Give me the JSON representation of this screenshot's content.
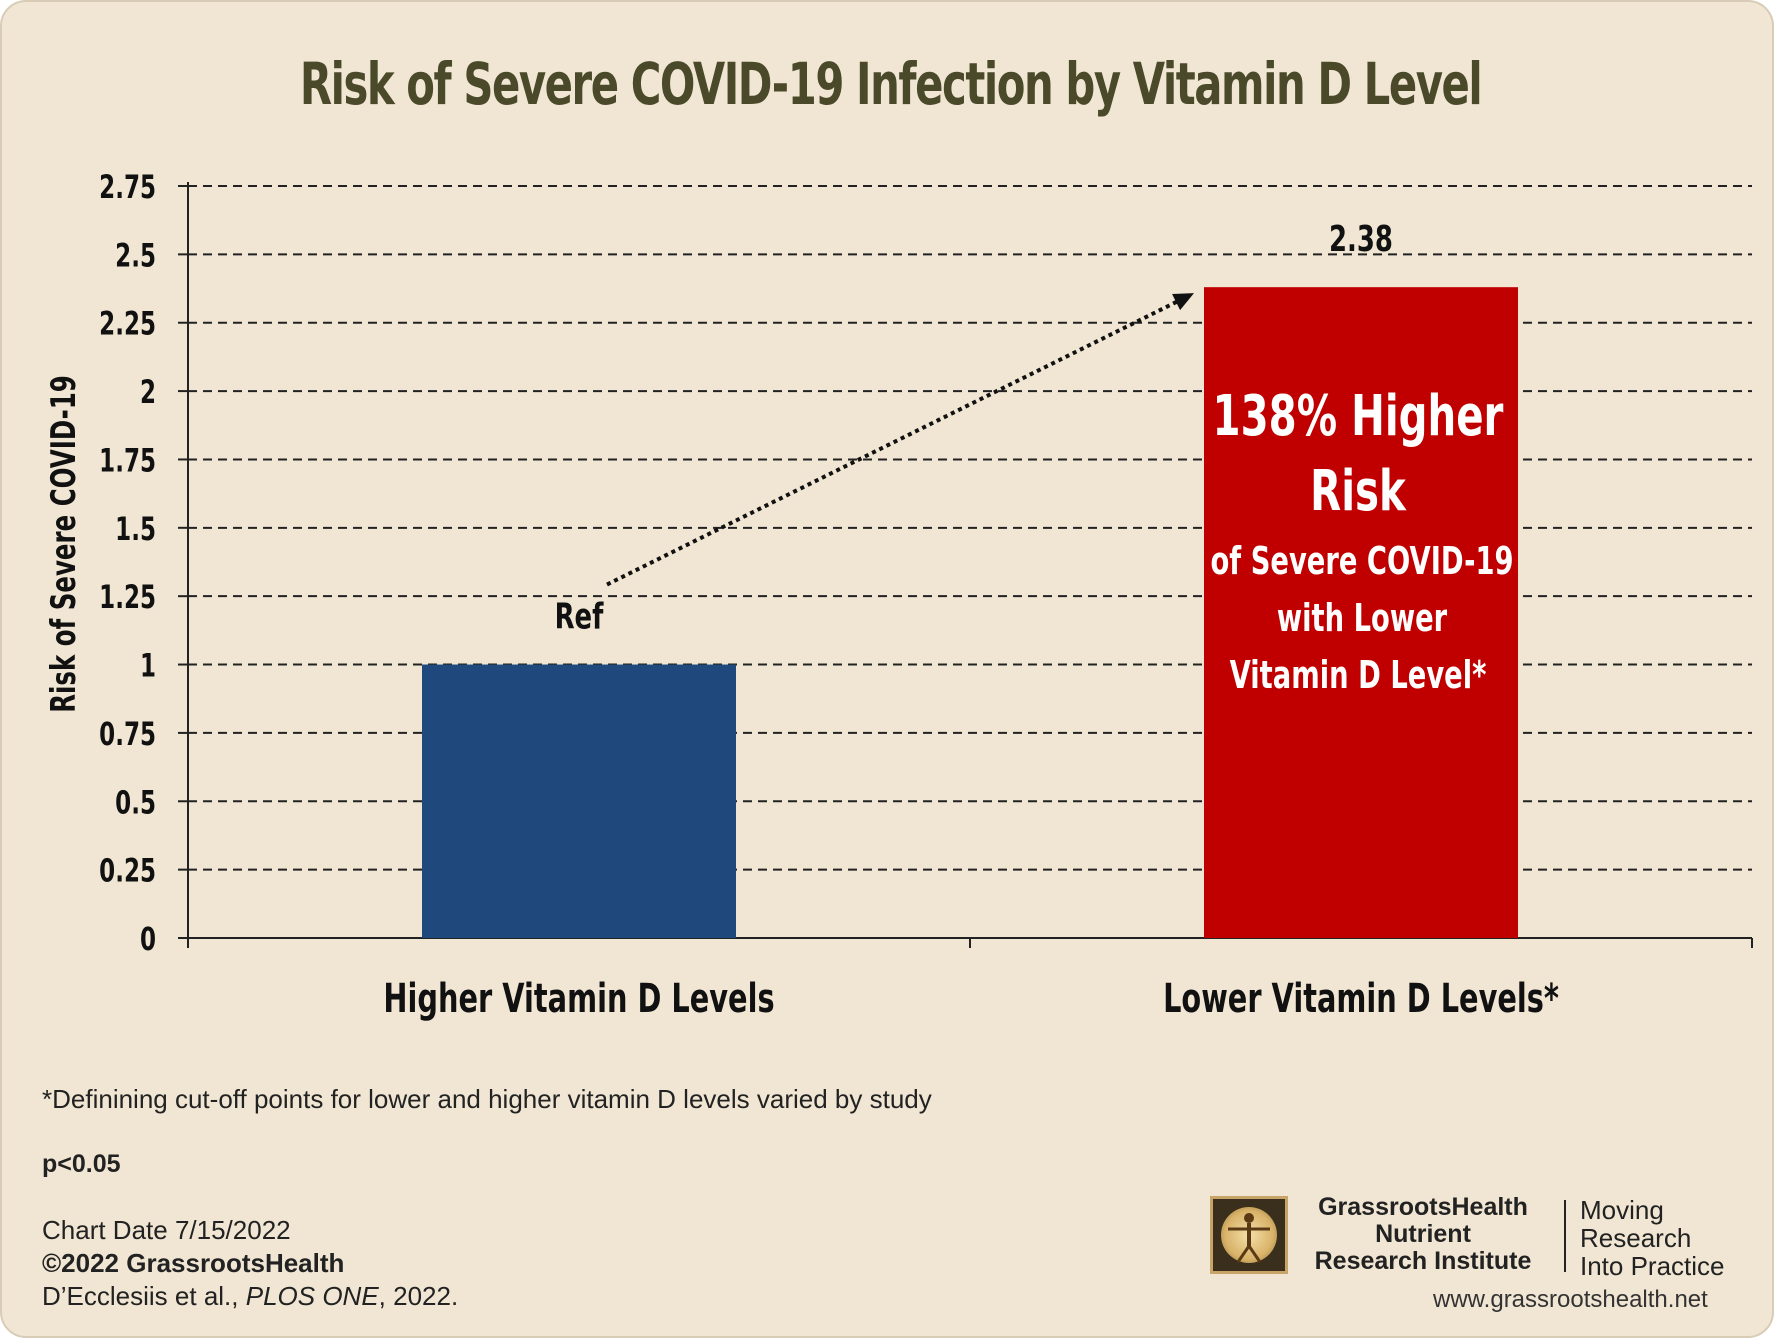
{
  "chart_data": {
    "type": "bar",
    "title": "Risk of Severe COVID-19 Infection by Vitamin D Level",
    "ylabel": "Risk of Severe COVID-19",
    "xlabel": "",
    "ylim": [
      0,
      2.75
    ],
    "yticks": [
      "0",
      "0.25",
      "0.5",
      "0.75",
      "1",
      "1.25",
      "1.5",
      "1.75",
      "2",
      "2.25",
      "2.5",
      "2.75"
    ],
    "grid": true,
    "categories": [
      "Higher Vitamin D Levels",
      "Lower Vitamin D Levels*"
    ],
    "values": [
      1,
      2.38
    ],
    "bar_colors": [
      "#1f497d",
      "#c00000"
    ],
    "data_labels": [
      "Ref",
      "2.38"
    ],
    "annotation": {
      "line1": "138% Higher",
      "line2": "Risk",
      "line3": "of Severe COVID-19",
      "line4": "with Lower",
      "line5": "Vitamin D Level*"
    }
  },
  "footer": {
    "note": "*Definining cut-off points for lower and higher vitamin D levels varied by study",
    "pvalue": "p<0.05",
    "chart_date": "Chart Date 7/15/2022",
    "copyright": "©2022 GrassrootsHealth",
    "citation_authors": "D’Ecclesiis et al., ",
    "citation_journal": "PLOS ONE",
    "citation_year": ", 2022."
  },
  "logo": {
    "org_line1": "GrassrootsHealth",
    "org_line2": "Nutrient",
    "org_line3": "Research Institute",
    "tag_line1": "Moving",
    "tag_line2": "Research",
    "tag_line3": "Into Practice",
    "url": "www.grassrootshealth.net",
    "icon": "vitruvian-man-icon"
  },
  "colors": {
    "background": "#f0e6d3",
    "title": "#4a4a2a",
    "higher_bar": "#1f497d",
    "lower_bar": "#c00000"
  }
}
